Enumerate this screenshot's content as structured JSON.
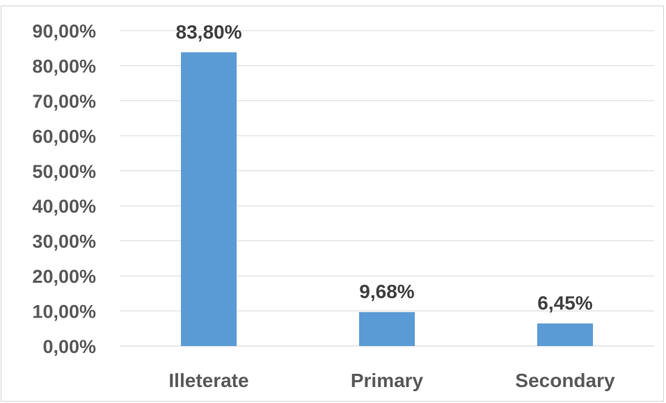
{
  "chart_data": {
    "type": "bar",
    "categories": [
      "Illeterate",
      "Primary",
      "Secondary"
    ],
    "values": [
      83.8,
      9.68,
      6.45
    ],
    "data_labels": [
      "83,80%",
      "9,68%",
      "6,45%"
    ],
    "title": "",
    "xlabel": "",
    "ylabel": "",
    "ylim": [
      0,
      90
    ],
    "yticks": [
      0,
      10,
      20,
      30,
      40,
      50,
      60,
      70,
      80,
      90
    ],
    "ytick_labels": [
      "0,00%",
      "10,00%",
      "20,00%",
      "30,00%",
      "40,00%",
      "50,00%",
      "60,00%",
      "70,00%",
      "80,00%",
      "90,00%"
    ],
    "grid": true,
    "legend": "none",
    "bar_color": "#5b9bd5"
  }
}
